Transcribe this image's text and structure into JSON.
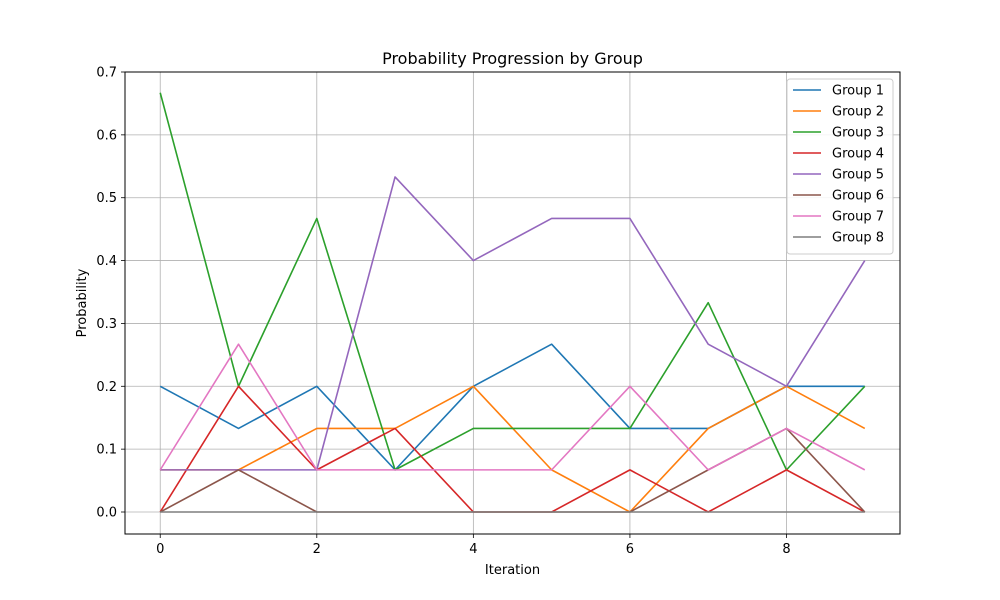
{
  "chart_data": {
    "type": "line",
    "title": "Probability Progression by Group",
    "xlabel": "Iteration",
    "ylabel": "Probability",
    "x": [
      0,
      1,
      2,
      3,
      4,
      5,
      6,
      7,
      8,
      9
    ],
    "xlim": [
      -0.45,
      9.45
    ],
    "ylim": [
      -0.035,
      0.7
    ],
    "xticks": [
      0,
      2,
      4,
      6,
      8
    ],
    "yticks": [
      0.0,
      0.1,
      0.2,
      0.3,
      0.4,
      0.5,
      0.6,
      0.7
    ],
    "grid": true,
    "legend_position": "top-right",
    "series": [
      {
        "name": "Group 1",
        "color": "#1f77b4",
        "values": [
          0.2,
          0.133,
          0.2,
          0.067,
          0.2,
          0.267,
          0.133,
          0.133,
          0.2,
          0.2
        ]
      },
      {
        "name": "Group 2",
        "color": "#ff7f0e",
        "values": [
          0.067,
          0.067,
          0.133,
          0.133,
          0.2,
          0.067,
          0.0,
          0.133,
          0.2,
          0.133
        ]
      },
      {
        "name": "Group 3",
        "color": "#2ca02c",
        "values": [
          0.667,
          0.2,
          0.467,
          0.067,
          0.133,
          0.133,
          0.133,
          0.333,
          0.067,
          0.2
        ]
      },
      {
        "name": "Group 4",
        "color": "#d62728",
        "values": [
          0.0,
          0.2,
          0.067,
          0.133,
          0.0,
          0.0,
          0.067,
          0.0,
          0.067,
          0.0
        ]
      },
      {
        "name": "Group 5",
        "color": "#9467bd",
        "values": [
          0.067,
          0.067,
          0.067,
          0.533,
          0.4,
          0.467,
          0.467,
          0.267,
          0.2,
          0.4
        ]
      },
      {
        "name": "Group 6",
        "color": "#8c564b",
        "values": [
          0.0,
          0.067,
          0.0,
          0.0,
          0.0,
          0.0,
          0.0,
          0.067,
          0.133,
          0.0
        ]
      },
      {
        "name": "Group 7",
        "color": "#e377c2",
        "values": [
          0.067,
          0.267,
          0.067,
          0.067,
          0.067,
          0.067,
          0.2,
          0.067,
          0.133,
          0.067
        ]
      },
      {
        "name": "Group 8",
        "color": "#7f7f7f",
        "values": [
          0.0,
          0.0,
          0.0,
          0.0,
          0.0,
          0.0,
          0.0,
          0.0,
          0.0,
          0.0
        ]
      }
    ]
  }
}
